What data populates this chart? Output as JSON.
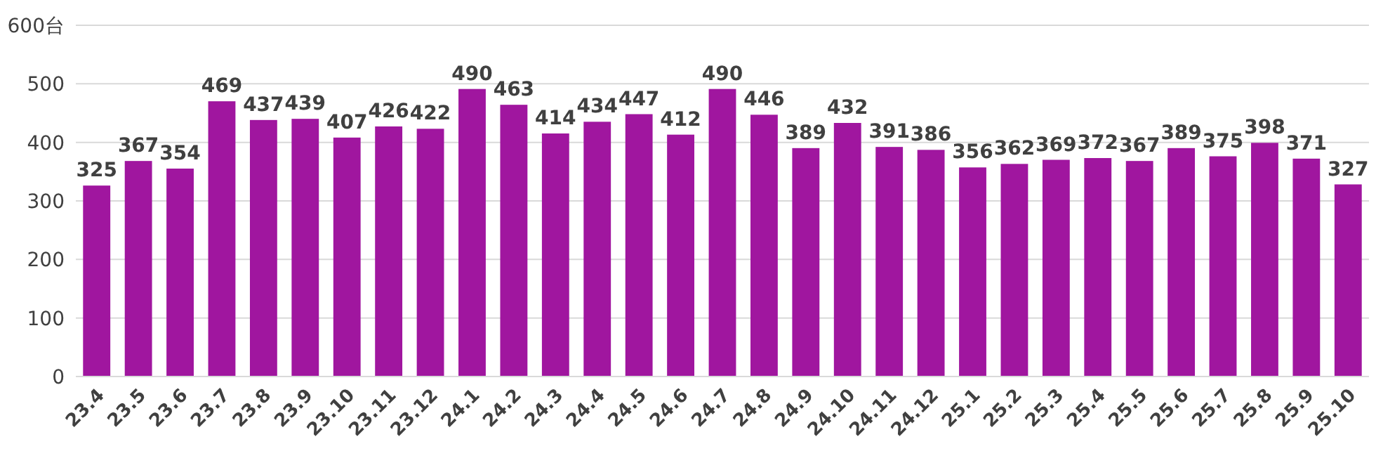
{
  "chart_data": {
    "type": "bar",
    "categories": [
      "23.4",
      "23.5",
      "23.6",
      "23.7",
      "23.8",
      "23.9",
      "23.10",
      "23.11",
      "23.12",
      "24.1",
      "24.2",
      "24.3",
      "24.4",
      "24.5",
      "24.6",
      "24.7",
      "24.8",
      "24.9",
      "24.10",
      "24.11",
      "24.12",
      "25.1",
      "25.2",
      "25.3",
      "25.4",
      "25.5",
      "25.6",
      "25.7",
      "25.8",
      "25.9",
      "25.10"
    ],
    "values": [
      325,
      367,
      354,
      469,
      437,
      439,
      407,
      426,
      422,
      490,
      463,
      414,
      434,
      447,
      412,
      490,
      446,
      389,
      432,
      391,
      386,
      356,
      362,
      369,
      372,
      367,
      389,
      375,
      398,
      371,
      327
    ],
    "color": "#a0169f",
    "ylim": [
      0,
      600
    ],
    "yticks": [
      0,
      100,
      200,
      300,
      400,
      500,
      {
        "value": 600,
        "label": "600台"
      }
    ],
    "grid": "y",
    "data_labels": true
  }
}
